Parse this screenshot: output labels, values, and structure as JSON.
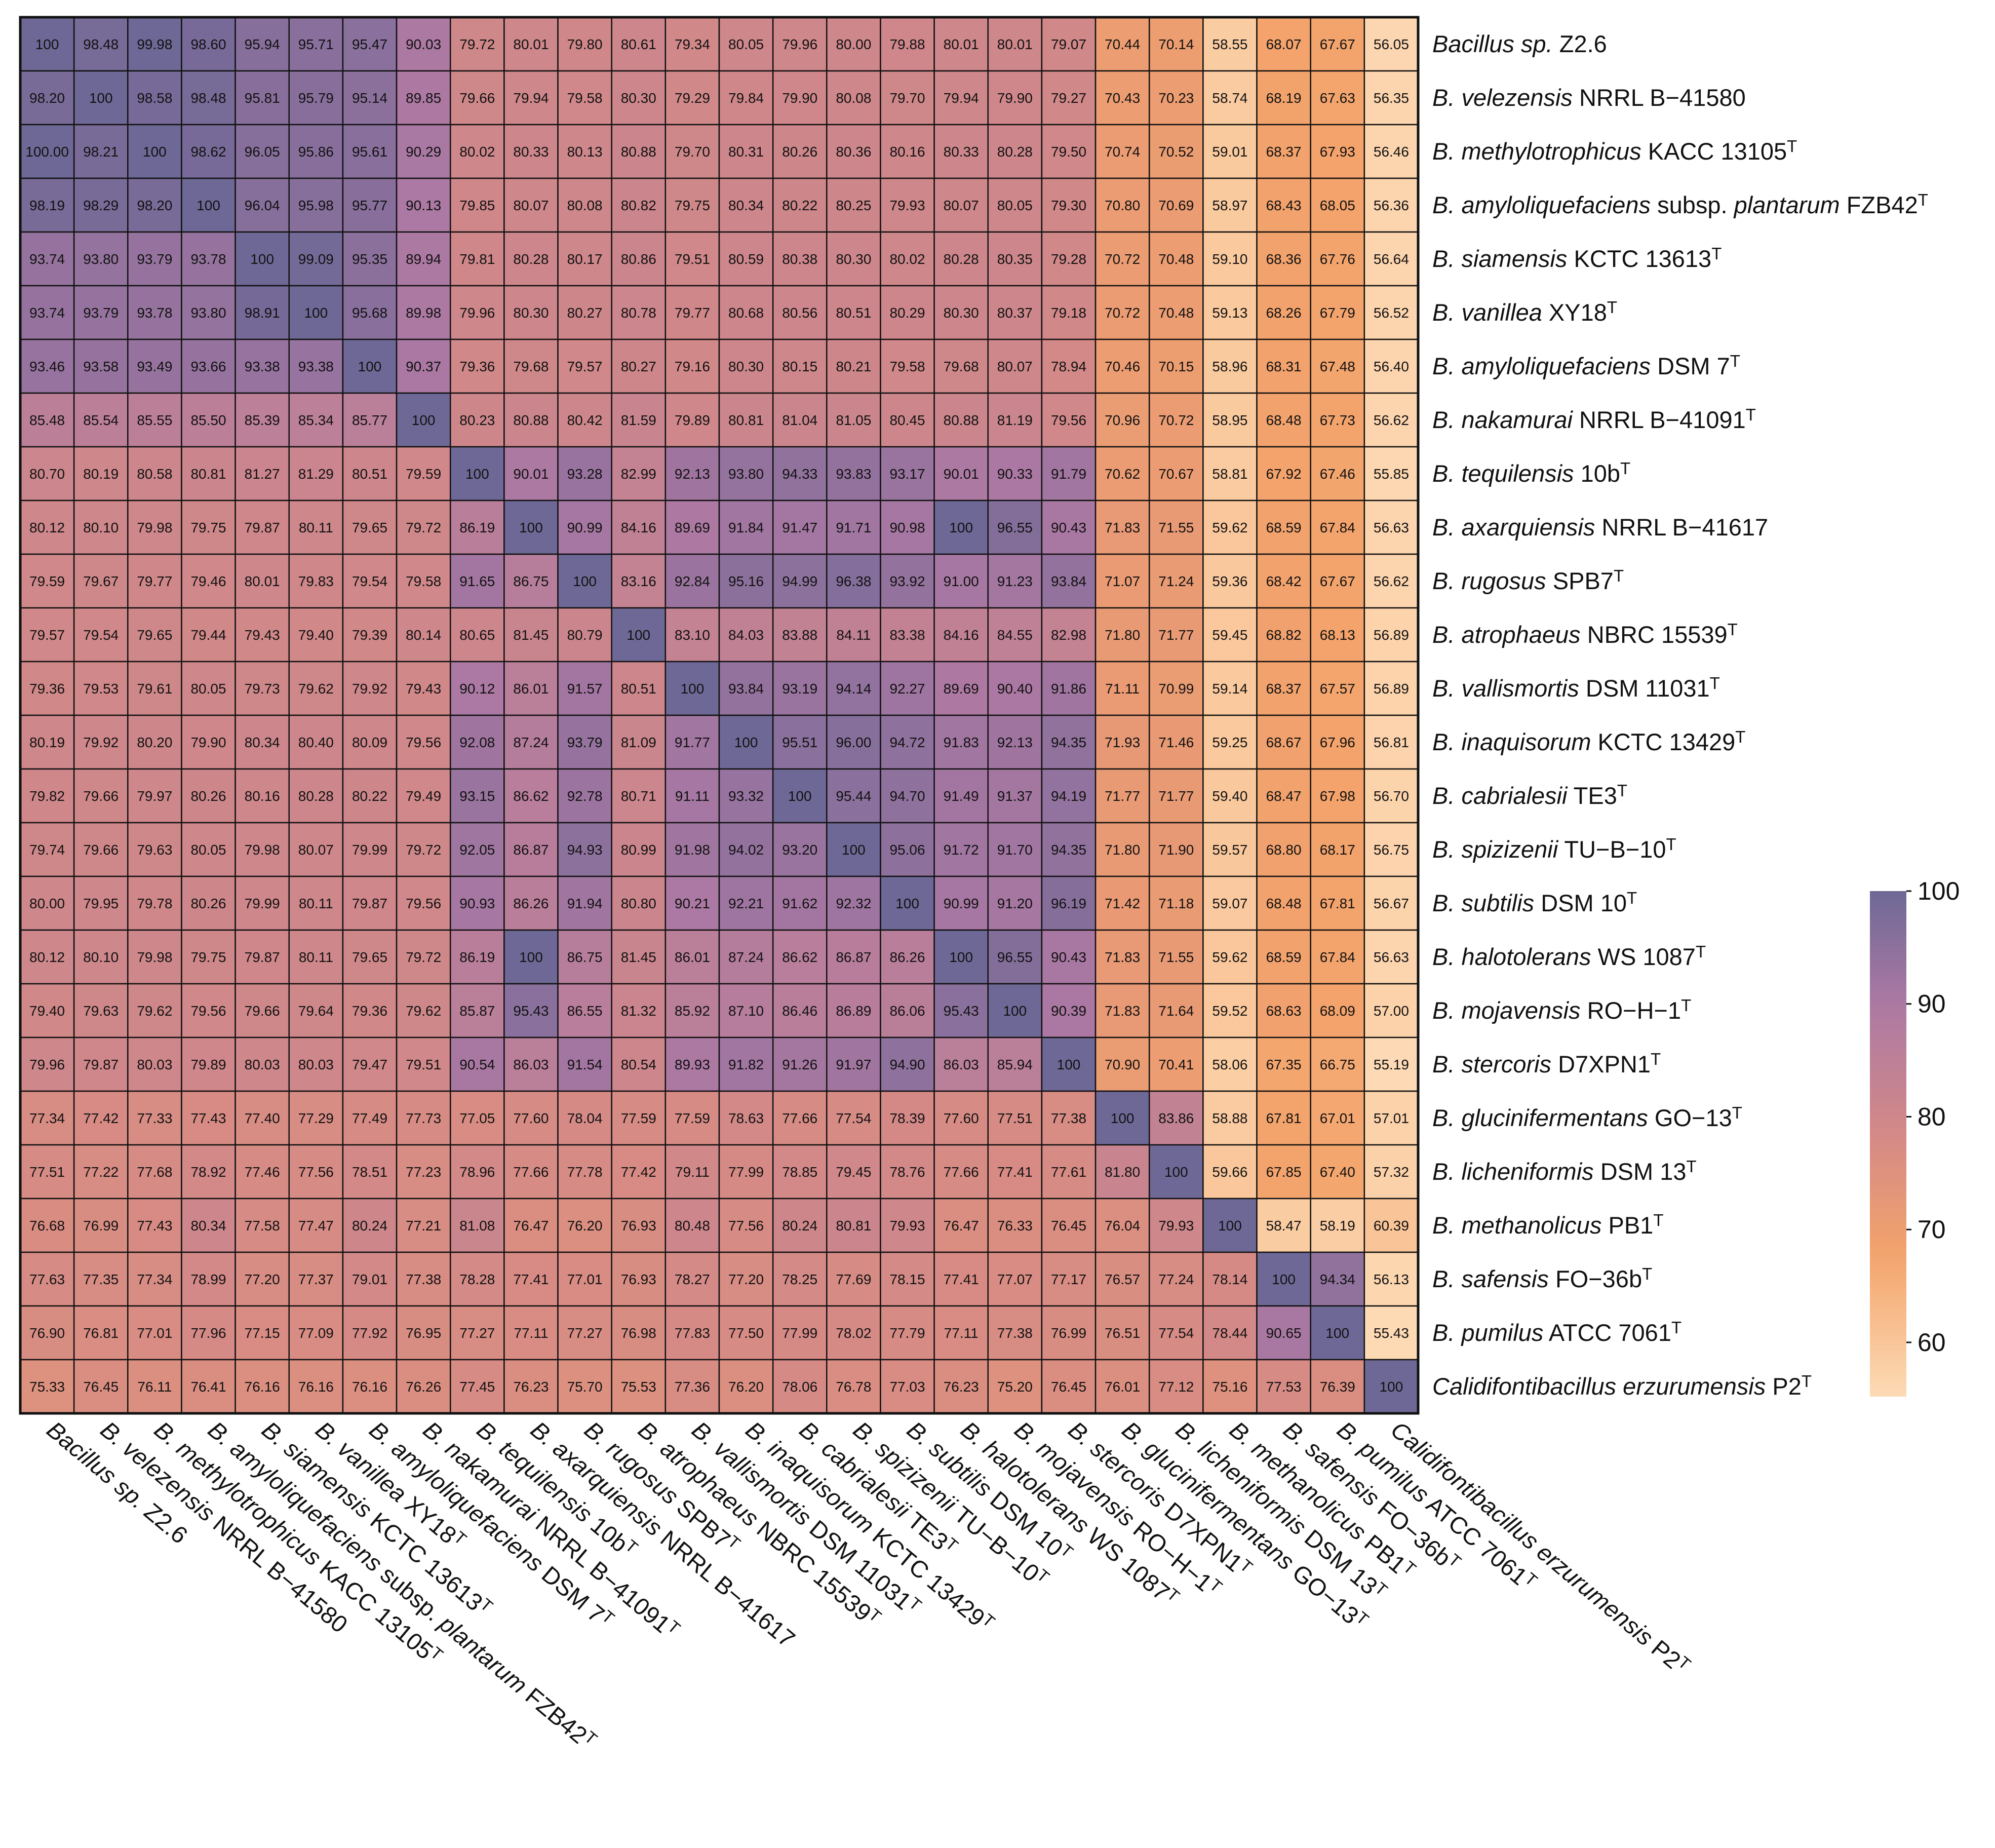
{
  "chart_data": {
    "type": "heatmap",
    "title": "",
    "labels": [
      {
        "it": "Bacillus sp.",
        "rest": " Z2.6",
        "sup": ""
      },
      {
        "it": "B. velezensis",
        "rest": " NRRL B−41580",
        "sup": ""
      },
      {
        "it": "B. methylotrophicus",
        "rest": " KACC 13105",
        "sup": "T"
      },
      {
        "it": "B. amyloliquefaciens",
        "rest": " subsp. ",
        "it2": "plantarum",
        "rest2": " FZB42",
        "sup": "T"
      },
      {
        "it": "B. siamensis",
        "rest": " KCTC 13613",
        "sup": "T"
      },
      {
        "it": "B. vanillea",
        "rest": " XY18",
        "sup": "T"
      },
      {
        "it": "B. amyloliquefaciens",
        "rest": " DSM 7",
        "sup": "T"
      },
      {
        "it": "B. nakamurai",
        "rest": " NRRL B−41091",
        "sup": "T"
      },
      {
        "it": "B. tequilensis",
        "rest": " 10b",
        "sup": "T"
      },
      {
        "it": "B. axarquiensis",
        "rest": " NRRL B−41617",
        "sup": ""
      },
      {
        "it": "B. rugosus",
        "rest": " SPB7",
        "sup": "T"
      },
      {
        "it": "B. atrophaeus",
        "rest": " NBRC 15539",
        "sup": "T"
      },
      {
        "it": "B. vallismortis",
        "rest": " DSM 11031",
        "sup": "T"
      },
      {
        "it": "B. inaquisorum",
        "rest": " KCTC 13429",
        "sup": "T"
      },
      {
        "it": "B. cabrialesii",
        "rest": " TE3",
        "sup": "T"
      },
      {
        "it": "B. spizizenii",
        "rest": " TU−B−10",
        "sup": "T"
      },
      {
        "it": "B. subtilis",
        "rest": " DSM 10",
        "sup": "T"
      },
      {
        "it": "B. halotolerans",
        "rest": " WS 1087",
        "sup": "T"
      },
      {
        "it": "B. mojavensis",
        "rest": " RO−H−1",
        "sup": "T"
      },
      {
        "it": "B. stercoris",
        "rest": " D7XPN1",
        "sup": "T"
      },
      {
        "it": "B. glucinifermentans",
        "rest": " GO−13",
        "sup": "T"
      },
      {
        "it": "B. licheniformis",
        "rest": " DSM 13",
        "sup": "T"
      },
      {
        "it": "B. methanolicus",
        "rest": " PB1",
        "sup": "T"
      },
      {
        "it": "B. safensis",
        "rest": " FO−36b",
        "sup": "T"
      },
      {
        "it": "B. pumilus",
        "rest": " ATCC 7061",
        "sup": "T"
      },
      {
        "it": "Calidifontibacillus erzurumensis",
        "rest": " P2",
        "sup": "T"
      }
    ],
    "values": [
      [
        "100",
        "98.48",
        "99.98",
        "98.60",
        "95.94",
        "95.71",
        "95.47",
        "90.03",
        "79.72",
        "80.01",
        "79.80",
        "80.61",
        "79.34",
        "80.05",
        "79.96",
        "80.00",
        "79.88",
        "80.01",
        "80.01",
        "79.07",
        "70.44",
        "70.14",
        "58.55",
        "68.07",
        "67.67",
        "56.05"
      ],
      [
        "98.20",
        "100",
        "98.58",
        "98.48",
        "95.81",
        "95.79",
        "95.14",
        "89.85",
        "79.66",
        "79.94",
        "79.58",
        "80.30",
        "79.29",
        "79.84",
        "79.90",
        "80.08",
        "79.70",
        "79.94",
        "79.90",
        "79.27",
        "70.43",
        "70.23",
        "58.74",
        "68.19",
        "67.63",
        "56.35"
      ],
      [
        "100.00",
        "98.21",
        "100",
        "98.62",
        "96.05",
        "95.86",
        "95.61",
        "90.29",
        "80.02",
        "80.33",
        "80.13",
        "80.88",
        "79.70",
        "80.31",
        "80.26",
        "80.36",
        "80.16",
        "80.33",
        "80.28",
        "79.50",
        "70.74",
        "70.52",
        "59.01",
        "68.37",
        "67.93",
        "56.46"
      ],
      [
        "98.19",
        "98.29",
        "98.20",
        "100",
        "96.04",
        "95.98",
        "95.77",
        "90.13",
        "79.85",
        "80.07",
        "80.08",
        "80.82",
        "79.75",
        "80.34",
        "80.22",
        "80.25",
        "79.93",
        "80.07",
        "80.05",
        "79.30",
        "70.80",
        "70.69",
        "58.97",
        "68.43",
        "68.05",
        "56.36"
      ],
      [
        "93.74",
        "93.80",
        "93.79",
        "93.78",
        "100",
        "99.09",
        "95.35",
        "89.94",
        "79.81",
        "80.28",
        "80.17",
        "80.86",
        "79.51",
        "80.59",
        "80.38",
        "80.30",
        "80.02",
        "80.28",
        "80.35",
        "79.28",
        "70.72",
        "70.48",
        "59.10",
        "68.36",
        "67.76",
        "56.64"
      ],
      [
        "93.74",
        "93.79",
        "93.78",
        "93.80",
        "98.91",
        "100",
        "95.68",
        "89.98",
        "79.96",
        "80.30",
        "80.27",
        "80.78",
        "79.77",
        "80.68",
        "80.56",
        "80.51",
        "80.29",
        "80.30",
        "80.37",
        "79.18",
        "70.72",
        "70.48",
        "59.13",
        "68.26",
        "67.79",
        "56.52"
      ],
      [
        "93.46",
        "93.58",
        "93.49",
        "93.66",
        "93.38",
        "93.38",
        "100",
        "90.37",
        "79.36",
        "79.68",
        "79.57",
        "80.27",
        "79.16",
        "80.30",
        "80.15",
        "80.21",
        "79.58",
        "79.68",
        "80.07",
        "78.94",
        "70.46",
        "70.15",
        "58.96",
        "68.31",
        "67.48",
        "56.40"
      ],
      [
        "85.48",
        "85.54",
        "85.55",
        "85.50",
        "85.39",
        "85.34",
        "85.77",
        "100",
        "80.23",
        "80.88",
        "80.42",
        "81.59",
        "79.89",
        "80.81",
        "81.04",
        "81.05",
        "80.45",
        "80.88",
        "81.19",
        "79.56",
        "70.96",
        "70.72",
        "58.95",
        "68.48",
        "67.73",
        "56.62"
      ],
      [
        "80.70",
        "80.19",
        "80.58",
        "80.81",
        "81.27",
        "81.29",
        "80.51",
        "79.59",
        "100",
        "90.01",
        "93.28",
        "82.99",
        "92.13",
        "93.80",
        "94.33",
        "93.83",
        "93.17",
        "90.01",
        "90.33",
        "91.79",
        "70.62",
        "70.67",
        "58.81",
        "67.92",
        "67.46",
        "55.85"
      ],
      [
        "80.12",
        "80.10",
        "79.98",
        "79.75",
        "79.87",
        "80.11",
        "79.65",
        "79.72",
        "86.19",
        "100",
        "90.99",
        "84.16",
        "89.69",
        "91.84",
        "91.47",
        "91.71",
        "90.98",
        "100",
        "96.55",
        "90.43",
        "71.83",
        "71.55",
        "59.62",
        "68.59",
        "67.84",
        "56.63"
      ],
      [
        "79.59",
        "79.67",
        "79.77",
        "79.46",
        "80.01",
        "79.83",
        "79.54",
        "79.58",
        "91.65",
        "86.75",
        "100",
        "83.16",
        "92.84",
        "95.16",
        "94.99",
        "96.38",
        "93.92",
        "91.00",
        "91.23",
        "93.84",
        "71.07",
        "71.24",
        "59.36",
        "68.42",
        "67.67",
        "56.62"
      ],
      [
        "79.57",
        "79.54",
        "79.65",
        "79.44",
        "79.43",
        "79.40",
        "79.39",
        "80.14",
        "80.65",
        "81.45",
        "80.79",
        "100",
        "83.10",
        "84.03",
        "83.88",
        "84.11",
        "83.38",
        "84.16",
        "84.55",
        "82.98",
        "71.80",
        "71.77",
        "59.45",
        "68.82",
        "68.13",
        "56.89"
      ],
      [
        "79.36",
        "79.53",
        "79.61",
        "80.05",
        "79.73",
        "79.62",
        "79.92",
        "79.43",
        "90.12",
        "86.01",
        "91.57",
        "80.51",
        "100",
        "93.84",
        "93.19",
        "94.14",
        "92.27",
        "89.69",
        "90.40",
        "91.86",
        "71.11",
        "70.99",
        "59.14",
        "68.37",
        "67.57",
        "56.89"
      ],
      [
        "80.19",
        "79.92",
        "80.20",
        "79.90",
        "80.34",
        "80.40",
        "80.09",
        "79.56",
        "92.08",
        "87.24",
        "93.79",
        "81.09",
        "91.77",
        "100",
        "95.51",
        "96.00",
        "94.72",
        "91.83",
        "92.13",
        "94.35",
        "71.93",
        "71.46",
        "59.25",
        "68.67",
        "67.96",
        "56.81"
      ],
      [
        "79.82",
        "79.66",
        "79.97",
        "80.26",
        "80.16",
        "80.28",
        "80.22",
        "79.49",
        "93.15",
        "86.62",
        "92.78",
        "80.71",
        "91.11",
        "93.32",
        "100",
        "95.44",
        "94.70",
        "91.49",
        "91.37",
        "94.19",
        "71.77",
        "71.77",
        "59.40",
        "68.47",
        "67.98",
        "56.70"
      ],
      [
        "79.74",
        "79.66",
        "79.63",
        "80.05",
        "79.98",
        "80.07",
        "79.99",
        "79.72",
        "92.05",
        "86.87",
        "94.93",
        "80.99",
        "91.98",
        "94.02",
        "93.20",
        "100",
        "95.06",
        "91.72",
        "91.70",
        "94.35",
        "71.80",
        "71.90",
        "59.57",
        "68.80",
        "68.17",
        "56.75"
      ],
      [
        "80.00",
        "79.95",
        "79.78",
        "80.26",
        "79.99",
        "80.11",
        "79.87",
        "79.56",
        "90.93",
        "86.26",
        "91.94",
        "80.80",
        "90.21",
        "92.21",
        "91.62",
        "92.32",
        "100",
        "90.99",
        "91.20",
        "96.19",
        "71.42",
        "71.18",
        "59.07",
        "68.48",
        "67.81",
        "56.67"
      ],
      [
        "80.12",
        "80.10",
        "79.98",
        "79.75",
        "79.87",
        "80.11",
        "79.65",
        "79.72",
        "86.19",
        "100",
        "86.75",
        "81.45",
        "86.01",
        "87.24",
        "86.62",
        "86.87",
        "86.26",
        "100",
        "96.55",
        "90.43",
        "71.83",
        "71.55",
        "59.62",
        "68.59",
        "67.84",
        "56.63"
      ],
      [
        "79.40",
        "79.63",
        "79.62",
        "79.56",
        "79.66",
        "79.64",
        "79.36",
        "79.62",
        "85.87",
        "95.43",
        "86.55",
        "81.32",
        "85.92",
        "87.10",
        "86.46",
        "86.89",
        "86.06",
        "95.43",
        "100",
        "90.39",
        "71.83",
        "71.64",
        "59.52",
        "68.63",
        "68.09",
        "57.00"
      ],
      [
        "79.96",
        "79.87",
        "80.03",
        "79.89",
        "80.03",
        "80.03",
        "79.47",
        "79.51",
        "90.54",
        "86.03",
        "91.54",
        "80.54",
        "89.93",
        "91.82",
        "91.26",
        "91.97",
        "94.90",
        "86.03",
        "85.94",
        "100",
        "70.90",
        "70.41",
        "58.06",
        "67.35",
        "66.75",
        "55.19"
      ],
      [
        "77.34",
        "77.42",
        "77.33",
        "77.43",
        "77.40",
        "77.29",
        "77.49",
        "77.73",
        "77.05",
        "77.60",
        "78.04",
        "77.59",
        "77.59",
        "78.63",
        "77.66",
        "77.54",
        "78.39",
        "77.60",
        "77.51",
        "77.38",
        "100",
        "83.86",
        "58.88",
        "67.81",
        "67.01",
        "57.01"
      ],
      [
        "77.51",
        "77.22",
        "77.68",
        "78.92",
        "77.46",
        "77.56",
        "78.51",
        "77.23",
        "78.96",
        "77.66",
        "77.78",
        "77.42",
        "79.11",
        "77.99",
        "78.85",
        "79.45",
        "78.76",
        "77.66",
        "77.41",
        "77.61",
        "81.80",
        "100",
        "59.66",
        "67.85",
        "67.40",
        "57.32"
      ],
      [
        "76.68",
        "76.99",
        "77.43",
        "80.34",
        "77.58",
        "77.47",
        "80.24",
        "77.21",
        "81.08",
        "76.47",
        "76.20",
        "76.93",
        "80.48",
        "77.56",
        "80.24",
        "80.81",
        "79.93",
        "76.47",
        "76.33",
        "76.45",
        "76.04",
        "79.93",
        "100",
        "58.47",
        "58.19",
        "60.39"
      ],
      [
        "77.63",
        "77.35",
        "77.34",
        "78.99",
        "77.20",
        "77.37",
        "79.01",
        "77.38",
        "78.28",
        "77.41",
        "77.01",
        "76.93",
        "78.27",
        "77.20",
        "78.25",
        "77.69",
        "78.15",
        "77.41",
        "77.07",
        "77.17",
        "76.57",
        "77.24",
        "78.14",
        "100",
        "94.34",
        "56.13"
      ],
      [
        "76.90",
        "76.81",
        "77.01",
        "77.96",
        "77.15",
        "77.09",
        "77.92",
        "76.95",
        "77.27",
        "77.11",
        "77.27",
        "76.98",
        "77.83",
        "77.50",
        "77.99",
        "78.02",
        "77.79",
        "77.11",
        "77.38",
        "76.99",
        "76.51",
        "77.54",
        "78.44",
        "90.65",
        "100",
        "55.43"
      ],
      [
        "75.33",
        "76.45",
        "76.11",
        "76.41",
        "76.16",
        "76.16",
        "76.16",
        "76.26",
        "77.45",
        "76.23",
        "75.70",
        "75.53",
        "77.36",
        "76.20",
        "78.06",
        "76.78",
        "77.03",
        "76.23",
        "75.20",
        "76.45",
        "76.01",
        "77.12",
        "75.16",
        "77.53",
        "76.39",
        "100"
      ]
    ],
    "colorbar": {
      "ticks": [
        "100",
        "90",
        "80",
        "70",
        "60"
      ],
      "min": 55.19,
      "max": 100
    },
    "colors": {
      "stops": [
        "#fddbb6",
        "#f3a36b",
        "#d58a86",
        "#ac79a3",
        "#6e6896"
      ],
      "stop_values": [
        55,
        68,
        78,
        90,
        100
      ],
      "border": "#111111",
      "text": "#111111"
    }
  }
}
